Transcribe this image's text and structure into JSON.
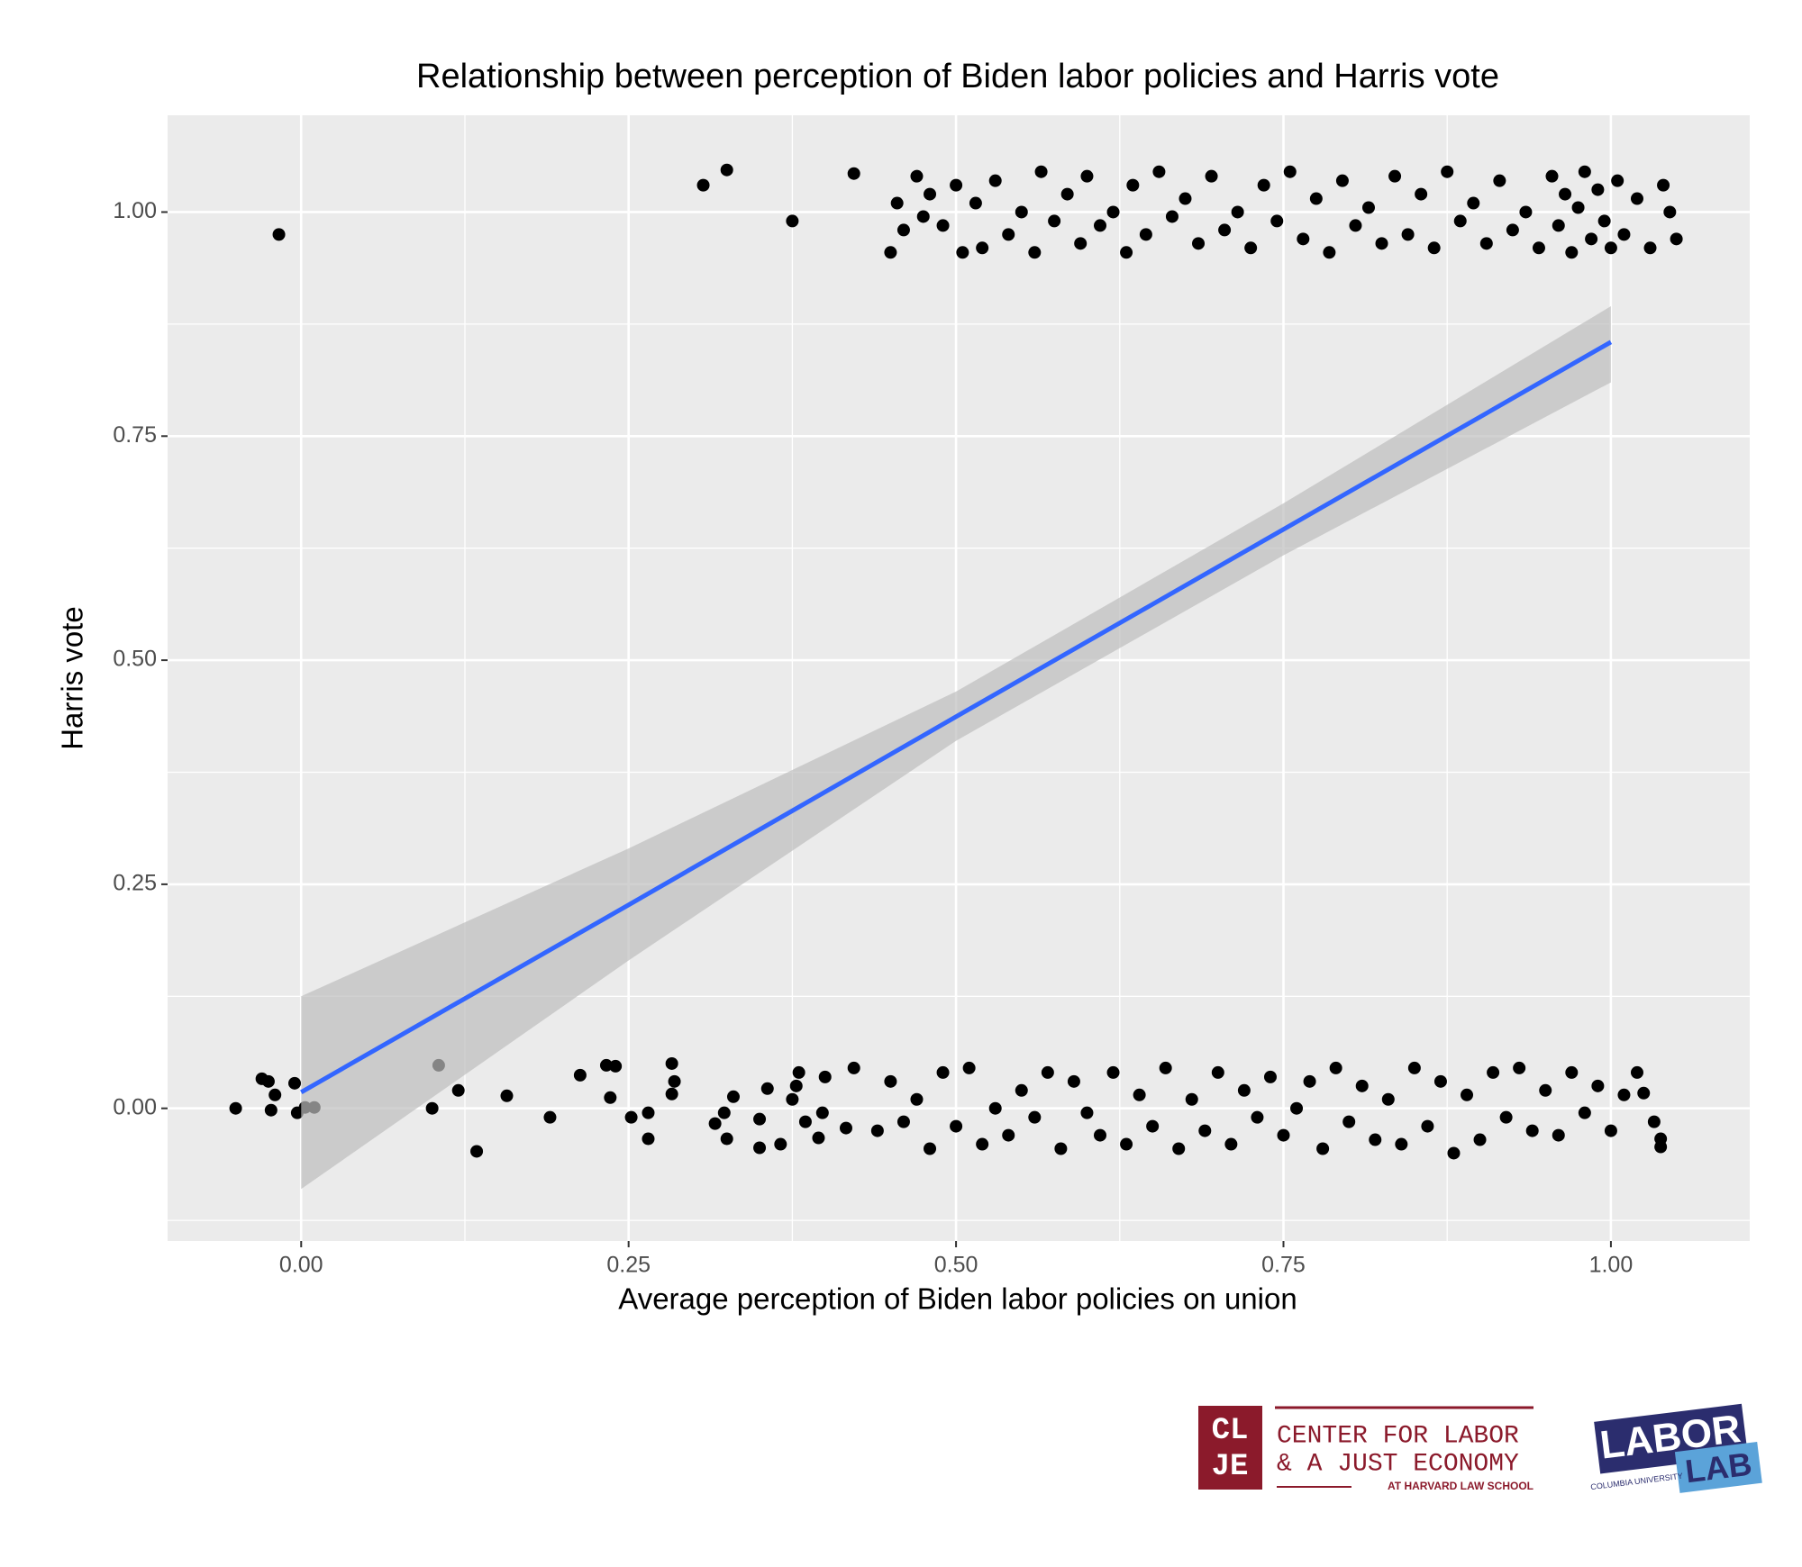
{
  "chart_data": {
    "type": "scatter",
    "title": "Relationship between perception of Biden labor policies and Harris vote",
    "x_label": "Average perception of Biden labor policies on union",
    "y_label": "Harris vote",
    "xlim": [
      -0.102,
      1.106
    ],
    "ylim": [
      -0.148,
      1.108
    ],
    "xticks": [
      {
        "value": 0,
        "label": "0.00"
      },
      {
        "value": 0.25,
        "label": "0.25"
      },
      {
        "value": 0.5,
        "label": "0.50"
      },
      {
        "value": 0.75,
        "label": "0.75"
      },
      {
        "value": 1,
        "label": "1.00"
      }
    ],
    "yticks": [
      {
        "value": 0,
        "label": "0.00"
      },
      {
        "value": 0.25,
        "label": "0.25"
      },
      {
        "value": 0.5,
        "label": "0.50"
      },
      {
        "value": 0.75,
        "label": "0.75"
      },
      {
        "value": 1,
        "label": "1.00"
      }
    ],
    "xminor": [
      0.125,
      0.375,
      0.625,
      0.875
    ],
    "yminor": [
      -0.125,
      0.125,
      0.375,
      0.625,
      0.875
    ],
    "grid": true,
    "point_color": "#000000",
    "fit_color": "#3366ff",
    "band_color": "#bdbdbd",
    "fit": {
      "x": [
        0,
        0.25,
        0.5,
        0.75,
        1
      ],
      "y": [
        0.018,
        0.227,
        0.437,
        0.646,
        0.855
      ],
      "lower": [
        -0.09,
        0.165,
        0.41,
        0.617,
        0.81
      ],
      "upper": [
        0.125,
        0.29,
        0.465,
        0.675,
        0.895
      ]
    },
    "points": {
      "x": [
        -0.017,
        0.307,
        0.325,
        0.375,
        0.422,
        0.45,
        0.455,
        0.46,
        0.47,
        0.475,
        0.48,
        0.49,
        0.5,
        0.505,
        0.515,
        0.52,
        0.53,
        0.54,
        0.55,
        0.56,
        0.565,
        0.575,
        0.585,
        0.595,
        0.6,
        0.61,
        0.62,
        0.63,
        0.635,
        0.645,
        0.655,
        0.665,
        0.675,
        0.685,
        0.695,
        0.705,
        0.715,
        0.725,
        0.735,
        0.745,
        0.755,
        0.765,
        0.775,
        0.785,
        0.795,
        0.805,
        0.815,
        0.825,
        0.835,
        0.845,
        0.855,
        0.865,
        0.875,
        0.885,
        0.895,
        0.905,
        0.915,
        0.925,
        0.935,
        0.945,
        0.955,
        0.96,
        0.965,
        0.97,
        0.975,
        0.98,
        0.985,
        0.99,
        0.995,
        1.0,
        1.005,
        1.01,
        1.02,
        1.03,
        1.04,
        1.05,
        1.045,
        -0.05,
        -0.03,
        -0.025,
        -0.02,
        -0.023,
        -0.005,
        -0.003,
        0.003,
        0.01,
        0.1,
        0.105,
        0.12,
        0.134,
        0.157,
        0.19,
        0.213,
        0.233,
        0.24,
        0.236,
        0.252,
        0.265,
        0.265,
        0.283,
        0.285,
        0.283,
        0.316,
        0.323,
        0.325,
        0.33,
        0.35,
        0.35,
        0.356,
        0.366,
        0.375,
        0.378,
        0.38,
        0.385,
        0.395,
        0.398,
        0.4,
        0.416,
        0.422,
        0.44,
        0.45,
        0.46,
        0.47,
        0.48,
        0.49,
        0.5,
        0.51,
        0.52,
        0.53,
        0.54,
        0.55,
        0.56,
        0.57,
        0.58,
        0.59,
        0.6,
        0.61,
        0.62,
        0.63,
        0.64,
        0.65,
        0.66,
        0.67,
        0.68,
        0.69,
        0.7,
        0.71,
        0.72,
        0.73,
        0.74,
        0.75,
        0.76,
        0.77,
        0.78,
        0.79,
        0.8,
        0.81,
        0.82,
        0.83,
        0.84,
        0.85,
        0.86,
        0.87,
        0.88,
        0.89,
        0.9,
        0.91,
        0.92,
        0.93,
        0.94,
        0.95,
        0.96,
        0.97,
        0.98,
        0.99,
        1.0,
        1.01,
        1.02,
        1.025,
        1.033,
        1.038,
        1.038
      ],
      "y": [
        0.975,
        1.03,
        1.047,
        0.99,
        1.043,
        0.955,
        1.01,
        0.98,
        1.04,
        0.995,
        1.02,
        0.985,
        1.03,
        0.955,
        1.01,
        0.96,
        1.035,
        0.975,
        1.0,
        0.955,
        1.045,
        0.99,
        1.02,
        0.965,
        1.04,
        0.985,
        1.0,
        0.955,
        1.03,
        0.975,
        1.045,
        0.995,
        1.015,
        0.965,
        1.04,
        0.98,
        1.0,
        0.96,
        1.03,
        0.99,
        1.045,
        0.97,
        1.015,
        0.955,
        1.035,
        0.985,
        1.005,
        0.965,
        1.04,
        0.975,
        1.02,
        0.96,
        1.045,
        0.99,
        1.01,
        0.965,
        1.035,
        0.98,
        1.0,
        0.96,
        1.04,
        0.985,
        1.02,
        0.955,
        1.005,
        1.045,
        0.97,
        1.025,
        0.99,
        0.96,
        1.035,
        0.975,
        1.015,
        0.96,
        1.03,
        0.97,
        1.0,
        0,
        0.033,
        0.03,
        0.015,
        -0.002,
        0.028,
        -0.005,
        0.001,
        0.001,
        0,
        0.048,
        0.02,
        -0.048,
        0.014,
        -0.01,
        0.037,
        0.048,
        0.047,
        0.012,
        -0.01,
        -0.005,
        -0.034,
        0.05,
        0.03,
        0.016,
        -0.017,
        -0.005,
        -0.034,
        0.013,
        -0.044,
        -0.012,
        0.022,
        -0.04,
        0.01,
        0.025,
        0.04,
        -0.015,
        -0.033,
        -0.005,
        0.035,
        -0.022,
        0.045,
        -0.025,
        0.03,
        -0.015,
        0.01,
        -0.045,
        0.04,
        -0.02,
        0.045,
        -0.04,
        0,
        -0.03,
        0.02,
        -0.01,
        0.04,
        -0.045,
        0.03,
        -0.005,
        -0.03,
        0.04,
        -0.04,
        0.015,
        -0.02,
        0.045,
        -0.045,
        0.01,
        -0.025,
        0.04,
        -0.04,
        0.02,
        -0.01,
        0.035,
        -0.03,
        0,
        0.03,
        -0.045,
        0.045,
        -0.015,
        0.025,
        -0.035,
        0.01,
        -0.04,
        0.045,
        -0.02,
        0.03,
        -0.05,
        0.015,
        -0.035,
        0.04,
        -0.01,
        0.045,
        -0.025,
        0.02,
        -0.03,
        0.04,
        -0.005,
        0.025,
        -0.025,
        0.015,
        0.04,
        0.017,
        -0.015,
        -0.043,
        -0.034
      ]
    }
  },
  "footer": {
    "clje_mark": [
      "CL",
      "JE"
    ],
    "clje_name": [
      "CENTER FOR LABOR",
      "& A JUST ECONOMY"
    ],
    "clje_sub": "AT HARVARD LAW SCHOOL",
    "labor_lab": [
      "LABOR",
      "LAB"
    ],
    "columbia": "COLUMBIA UNIVERSITY"
  }
}
